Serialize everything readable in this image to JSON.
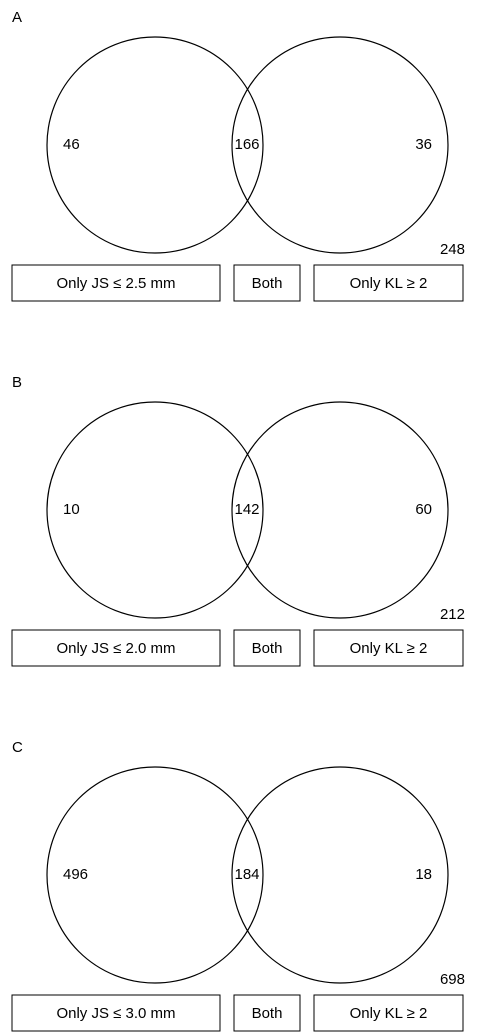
{
  "panels": [
    {
      "label": "A",
      "left": "46",
      "both": "166",
      "right": "36",
      "total": "248",
      "legend": [
        "Only JS ≤ 2.5 mm",
        "Both",
        "Only KL ≥ 2"
      ]
    },
    {
      "label": "B",
      "left": "10",
      "both": "142",
      "right": "60",
      "total": "212",
      "legend": [
        "Only JS ≤ 2.0 mm",
        "Both",
        "Only KL ≥ 2"
      ]
    },
    {
      "label": "C",
      "left": "496",
      "both": "184",
      "right": "18",
      "total": "698",
      "legend": [
        "Only JS ≤ 3.0 mm",
        "Both",
        "Only KL ≥ 2"
      ]
    }
  ]
}
